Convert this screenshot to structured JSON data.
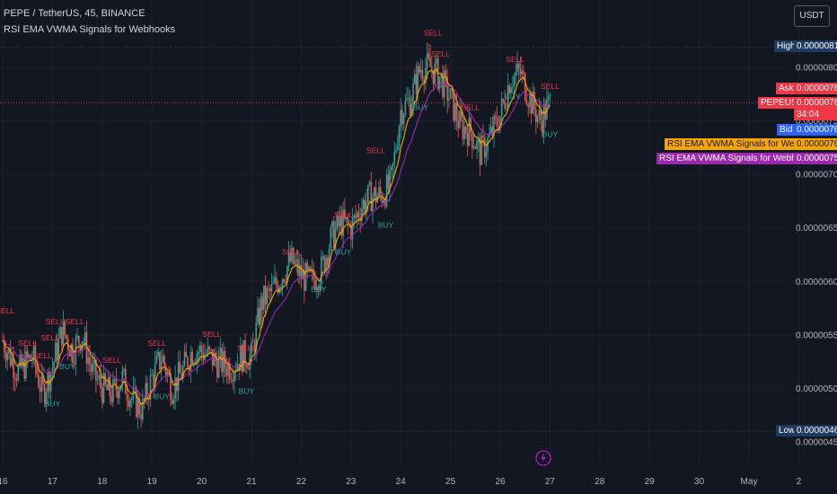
{
  "header": {
    "symbol_line": "PEPE / TetherUS, 45, BINANCE",
    "indicator_line": "RSI EMA VWMA Signals for Webhooks"
  },
  "currency_button": "USDT",
  "colors": {
    "background": "#131722",
    "up": "#26a69a",
    "down": "#ef5350",
    "ema": "#f7a600",
    "vwma": "#9c27b0",
    "sell_text": "#f23645",
    "buy_text": "#26a69a",
    "high_low_tag": "#1e3a5f",
    "bid": "#2962ff",
    "ask": "#f23645"
  },
  "chart_data": {
    "type": "candlestick",
    "y_ticks": [
      "0.00000800",
      "0.00000750",
      "0.00000700",
      "0.00000650",
      "0.00000600",
      "0.00000550",
      "0.00000500",
      "0.00000450"
    ],
    "ylim": [
      4.4e-06,
      8.4e-06
    ],
    "x_ticks": [
      "16",
      "17",
      "18",
      "19",
      "20",
      "21",
      "22",
      "23",
      "24",
      "25",
      "26",
      "27",
      "28",
      "29",
      "30",
      "May",
      "2"
    ],
    "x_days": [
      16,
      17,
      18,
      19,
      20,
      21,
      22,
      23,
      24,
      25,
      26,
      27,
      28,
      29,
      30,
      31,
      32
    ],
    "price_path": [
      [
        16.0,
        5.45e-06
      ],
      [
        16.3,
        5.15e-06
      ],
      [
        16.6,
        5.3e-06
      ],
      [
        16.8,
        4.95e-06
      ],
      [
        17.0,
        5.2e-06
      ],
      [
        17.2,
        5.55e-06
      ],
      [
        17.4,
        5.35e-06
      ],
      [
        17.6,
        5.5e-06
      ],
      [
        17.8,
        5.15e-06
      ],
      [
        18.0,
        5e-06
      ],
      [
        18.2,
        4.95e-06
      ],
      [
        18.4,
        5.1e-06
      ],
      [
        18.6,
        4.9e-06
      ],
      [
        18.8,
        4.8e-06
      ],
      [
        19.0,
        5.1e-06
      ],
      [
        19.2,
        5.3e-06
      ],
      [
        19.4,
        5e-06
      ],
      [
        19.6,
        5.15e-06
      ],
      [
        19.8,
        5.35e-06
      ],
      [
        20.0,
        5.35e-06
      ],
      [
        20.3,
        5.25e-06
      ],
      [
        20.6,
        5.2e-06
      ],
      [
        20.8,
        5.3e-06
      ],
      [
        21.0,
        5.3e-06
      ],
      [
        21.2,
        5.8e-06
      ],
      [
        21.4,
        5.9e-06
      ],
      [
        21.6,
        6.05e-06
      ],
      [
        21.8,
        6.2e-06
      ],
      [
        22.0,
        6.05e-06
      ],
      [
        22.2,
        6e-06
      ],
      [
        22.4,
        6.1e-06
      ],
      [
        22.6,
        6.4e-06
      ],
      [
        22.8,
        6.55e-06
      ],
      [
        23.0,
        6.5e-06
      ],
      [
        23.2,
        6.7e-06
      ],
      [
        23.4,
        6.8e-06
      ],
      [
        23.6,
        6.8e-06
      ],
      [
        23.8,
        6.9e-06
      ],
      [
        24.0,
        7.6e-06
      ],
      [
        24.2,
        7.7e-06
      ],
      [
        24.4,
        8e-06
      ],
      [
        24.6,
        8e-06
      ],
      [
        24.8,
        7.9e-06
      ],
      [
        25.0,
        7.7e-06
      ],
      [
        25.2,
        7.45e-06
      ],
      [
        25.4,
        7.4e-06
      ],
      [
        25.6,
        7.2e-06
      ],
      [
        25.8,
        7.35e-06
      ],
      [
        26.0,
        7.55e-06
      ],
      [
        26.2,
        7.9e-06
      ],
      [
        26.4,
        7.95e-06
      ],
      [
        26.6,
        7.7e-06
      ],
      [
        26.8,
        7.5e-06
      ],
      [
        27.0,
        7.67e-06
      ]
    ],
    "ema_label": "RSI EMA VWMA Signals for Webhooks:EMA 9",
    "ema_value": "0.00000763",
    "vwma_label": "RSI EMA VWMA Signals for Webhooks:VWMA 20",
    "vwma_value": "0.00000757",
    "high_label": "High",
    "high_value": "0.00000819",
    "low_label": "Low",
    "low_value": "0.00000460",
    "ask_label": "Ask",
    "ask_value": "0.00000767",
    "last_label": "PEPEUSDT",
    "last_value": "0.00000767",
    "countdown": "34:04",
    "bid_label": "Bid",
    "bid_value": "0.00000766",
    "signals": [
      {
        "text": "SELL",
        "day": 16.05,
        "price": 5.7e-06
      },
      {
        "text": "SELL",
        "day": 16.5,
        "price": 5.4e-06
      },
      {
        "text": "SELL",
        "day": 16.8,
        "price": 5.28e-06
      },
      {
        "text": "SELL",
        "day": 16.95,
        "price": 5.45e-06
      },
      {
        "text": "BUY",
        "day": 17.0,
        "price": 4.83e-06
      },
      {
        "text": "SELUSELL",
        "day": 17.25,
        "price": 5.6e-06
      },
      {
        "text": "BUY",
        "day": 17.3,
        "price": 5.18e-06
      },
      {
        "text": "SELL",
        "day": 18.2,
        "price": 5.24e-06
      },
      {
        "text": "SELL",
        "day": 19.1,
        "price": 5.4e-06
      },
      {
        "text": "BUY",
        "day": 19.2,
        "price": 4.9e-06
      },
      {
        "text": "SELL",
        "day": 20.2,
        "price": 5.48e-06
      },
      {
        "text": "SELL",
        "day": 20.9,
        "price": 5.35e-06
      },
      {
        "text": "BUY",
        "day": 20.9,
        "price": 4.95e-06
      },
      {
        "text": "SELL",
        "day": 21.8,
        "price": 6.25e-06
      },
      {
        "text": "BUY",
        "day": 22.35,
        "price": 5.9e-06
      },
      {
        "text": "SELL",
        "day": 22.85,
        "price": 6.6e-06
      },
      {
        "text": "BUY",
        "day": 22.85,
        "price": 6.25e-06
      },
      {
        "text": "SELL",
        "day": 23.5,
        "price": 7.2e-06
      },
      {
        "text": "BUY",
        "day": 23.7,
        "price": 6.5e-06
      },
      {
        "text": "BUY",
        "day": 24.4,
        "price": 7.6e-06
      },
      {
        "text": "SELL",
        "day": 24.65,
        "price": 8.3e-06
      },
      {
        "text": "SELL",
        "day": 24.8,
        "price": 8.1e-06
      },
      {
        "text": "SELL",
        "day": 25.4,
        "price": 7.6e-06
      },
      {
        "text": "SELL",
        "day": 26.3,
        "price": 8.05e-06
      },
      {
        "text": "BUY",
        "day": 26.25,
        "price": 7.7e-06
      },
      {
        "text": "SELL",
        "day": 27.0,
        "price": 7.8e-06
      },
      {
        "text": "BUY",
        "day": 27.0,
        "price": 7.35e-06
      }
    ]
  }
}
